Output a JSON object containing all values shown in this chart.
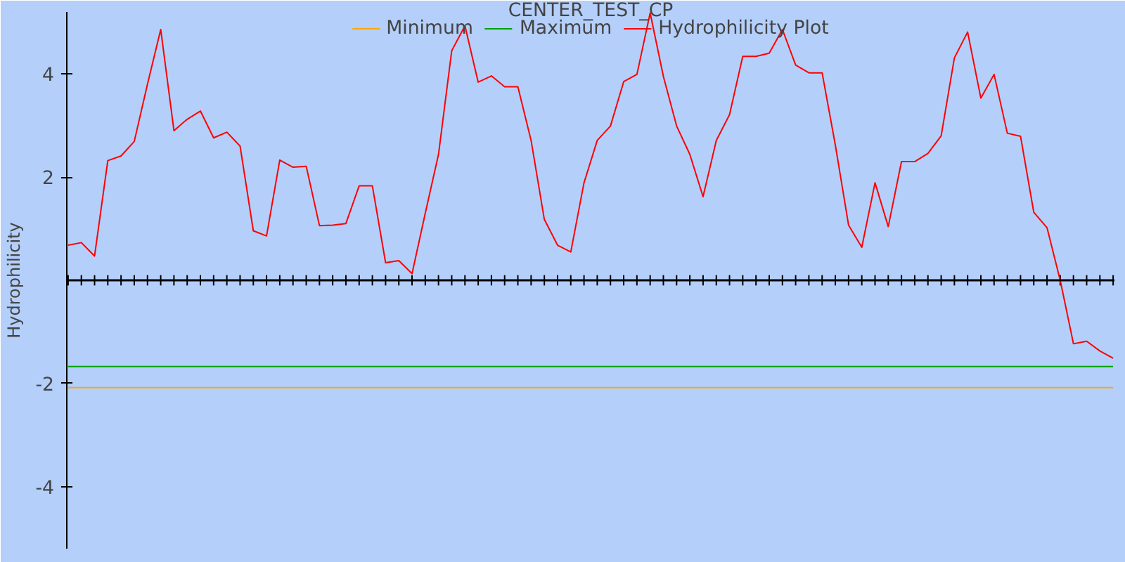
{
  "chart_data": {
    "type": "line",
    "title": "CENTER_TEST_CP",
    "ylabel": "Hydrophilicity",
    "categories": [
      null,
      null,
      null,
      null,
      null,
      null,
      null,
      null,
      null,
      null,
      null,
      null,
      null,
      null,
      null,
      null,
      null,
      null,
      null,
      null,
      null,
      null,
      null,
      null,
      null,
      null,
      null,
      null,
      null,
      null,
      null,
      null,
      null,
      null,
      null,
      null,
      null,
      null,
      null,
      null,
      null,
      null,
      null,
      null,
      null,
      null,
      null,
      null,
      null,
      null,
      null,
      null,
      null,
      null,
      null,
      null,
      null,
      null,
      null,
      null,
      null,
      null,
      null,
      null,
      null,
      null,
      null,
      null,
      null,
      null,
      null,
      null,
      null,
      null,
      null,
      null,
      null,
      null,
      null,
      null
    ],
    "series": [
      {
        "name": "Minimum",
        "color": "#ffa500",
        "values": [
          -2.08,
          -2.08,
          -2.08,
          -2.08,
          -2.08,
          -2.08,
          -2.08,
          -2.08,
          -2.08,
          -2.08,
          -2.08,
          -2.08,
          -2.08,
          -2.08,
          -2.08,
          -2.08,
          -2.08,
          -2.08,
          -2.08,
          -2.08,
          -2.08,
          -2.08,
          -2.08,
          -2.08,
          -2.08,
          -2.08,
          -2.08,
          -2.08,
          -2.08,
          -2.08,
          -2.08,
          -2.08,
          -2.08,
          -2.08,
          -2.08,
          -2.08,
          -2.08,
          -2.08,
          -2.08,
          -2.08,
          -2.08,
          -2.08,
          -2.08,
          -2.08,
          -2.08,
          -2.08,
          -2.08,
          -2.08,
          -2.08,
          -2.08,
          -2.08,
          -2.08,
          -2.08,
          -2.08,
          -2.08,
          -2.08,
          -2.08,
          -2.08,
          -2.08,
          -2.08,
          -2.08,
          -2.08,
          -2.08,
          -2.08,
          -2.08,
          -2.08,
          -2.08,
          -2.08,
          -2.08,
          -2.08,
          -2.08,
          -2.08,
          -2.08,
          -2.08,
          -2.08,
          -2.08,
          -2.08,
          -2.08,
          -2.08,
          -2.08
        ]
      },
      {
        "name": "Maximum",
        "color": "#00a000",
        "values": [
          -1.67,
          -1.67,
          -1.67,
          -1.67,
          -1.67,
          -1.67,
          -1.67,
          -1.67,
          -1.67,
          -1.67,
          -1.67,
          -1.67,
          -1.67,
          -1.67,
          -1.67,
          -1.67,
          -1.67,
          -1.67,
          -1.67,
          -1.67,
          -1.67,
          -1.67,
          -1.67,
          -1.67,
          -1.67,
          -1.67,
          -1.67,
          -1.67,
          -1.67,
          -1.67,
          -1.67,
          -1.67,
          -1.67,
          -1.67,
          -1.67,
          -1.67,
          -1.67,
          -1.67,
          -1.67,
          -1.67,
          -1.67,
          -1.67,
          -1.67,
          -1.67,
          -1.67,
          -1.67,
          -1.67,
          -1.67,
          -1.67,
          -1.67,
          -1.67,
          -1.67,
          -1.67,
          -1.67,
          -1.67,
          -1.67,
          -1.67,
          -1.67,
          -1.67,
          -1.67,
          -1.67,
          -1.67,
          -1.67,
          -1.67,
          -1.67,
          -1.67,
          -1.67,
          -1.67,
          -1.67,
          -1.67,
          -1.67,
          -1.67,
          -1.67,
          -1.67,
          -1.67,
          -1.67,
          -1.67,
          -1.67,
          -1.67,
          -1.67
        ]
      },
      {
        "name": "Hydrophilicity Plot",
        "color": "#ff0000",
        "values": [
          0.68,
          0.73,
          0.47,
          2.32,
          2.41,
          2.69,
          3.8,
          4.86,
          2.9,
          3.12,
          3.28,
          2.76,
          2.87,
          2.6,
          0.96,
          0.86,
          2.33,
          2.19,
          2.21,
          1.06,
          1.07,
          1.1,
          1.83,
          1.83,
          0.34,
          0.38,
          0.13,
          1.3,
          2.44,
          4.45,
          4.93,
          3.84,
          3.96,
          3.75,
          3.75,
          2.71,
          1.18,
          0.68,
          0.55,
          1.89,
          2.71,
          2.99,
          3.85,
          3.99,
          5.18,
          3.95,
          2.99,
          2.44,
          1.62,
          2.71,
          3.21,
          4.34,
          4.34,
          4.4,
          4.86,
          4.17,
          4.02,
          4.02,
          2.62,
          1.07,
          0.64,
          1.89,
          1.04,
          2.3,
          2.3,
          2.46,
          2.8,
          4.31,
          4.81,
          3.53,
          3.99,
          2.85,
          2.79,
          1.32,
          1.02,
          0.0,
          -1.23,
          -1.18,
          -1.37,
          -1.51
        ]
      }
    ],
    "ylim": [
      -5.2,
      5.2
    ],
    "yticks": [
      -4,
      -2,
      2,
      4
    ],
    "grid": false,
    "legend": "top",
    "tick_labels": "y"
  }
}
